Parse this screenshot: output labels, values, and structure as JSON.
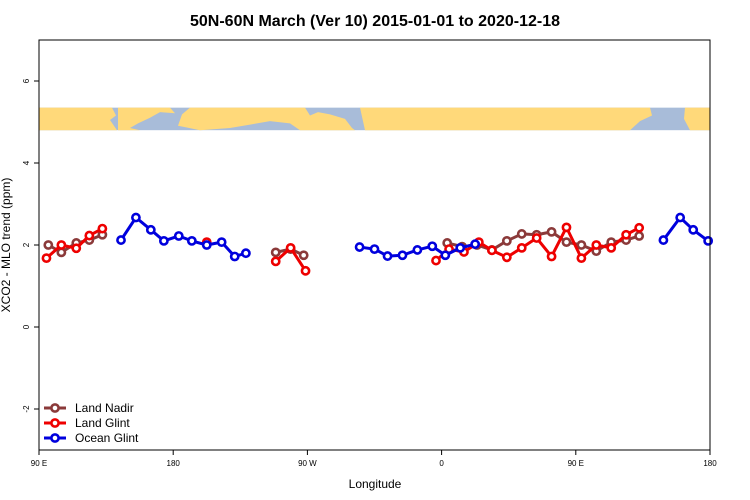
{
  "chart_data": {
    "type": "line",
    "title": "50N-60N March (Ver 10)   2015-01-01 to 2020-12-18",
    "xlabel": "Longitude",
    "ylabel": "XCO2 - MLO trend (ppm)",
    "xlim": [
      90,
      450
    ],
    "ylim": [
      -3,
      7
    ],
    "x_ticks": [
      {
        "value": 90,
        "label": "90 E"
      },
      {
        "value": 162,
        "label": "180"
      },
      {
        "value": 234,
        "label": "90 W"
      },
      {
        "value": 306,
        "label": "0"
      },
      {
        "value": 378,
        "label": "90 E"
      },
      {
        "value": 450,
        "label": "180"
      }
    ],
    "y_ticks": [
      {
        "value": -2,
        "label": "-2"
      },
      {
        "value": 0,
        "label": "0"
      },
      {
        "value": 2,
        "label": "2"
      },
      {
        "value": 4,
        "label": "4"
      },
      {
        "value": 6,
        "label": "6"
      }
    ],
    "map_band": {
      "y_range": [
        4.8,
        5.35
      ],
      "ocean_color": "#a8bcd9",
      "land_color": "#ffd97a"
    },
    "legend_position": "bottom-left",
    "series": [
      {
        "name": "Land Nadir",
        "color": "#8b3a3a",
        "segments": [
          [
            [
              95,
              2.0
            ],
            [
              102,
              1.82
            ],
            [
              110,
              2.05
            ],
            [
              117,
              2.12
            ],
            [
              124,
              2.25
            ]
          ],
          [
            [
              217,
              1.82
            ],
            [
              225,
              1.9
            ],
            [
              232,
              1.75
            ]
          ],
          [
            [
              309,
              2.05
            ],
            [
              317,
              1.96
            ],
            [
              325,
              2.0
            ],
            [
              333,
              1.88
            ],
            [
              341,
              2.1
            ],
            [
              349,
              2.27
            ],
            [
              357,
              2.25
            ],
            [
              365,
              2.32
            ],
            [
              373,
              2.07
            ],
            [
              381,
              2.0
            ],
            [
              389,
              1.85
            ],
            [
              397,
              2.07
            ],
            [
              405,
              2.12
            ],
            [
              412,
              2.22
            ]
          ]
        ]
      },
      {
        "name": "Land Glint",
        "color": "#ee0000",
        "segments": [
          [
            [
              94,
              1.68
            ],
            [
              102,
              2.0
            ],
            [
              110,
              1.92
            ],
            [
              117,
              2.23
            ],
            [
              124,
              2.4
            ]
          ],
          [
            [
              180,
              2.07
            ]
          ],
          [
            [
              217,
              1.6
            ],
            [
              225,
              1.93
            ],
            [
              233,
              1.37
            ]
          ],
          [
            [
              303,
              1.62
            ],
            [
              310,
              1.9
            ],
            [
              318,
              1.83
            ],
            [
              326,
              2.07
            ],
            [
              333,
              1.87
            ],
            [
              341,
              1.7
            ],
            [
              349,
              1.93
            ],
            [
              357,
              2.17
            ],
            [
              365,
              1.72
            ],
            [
              373,
              2.43
            ],
            [
              381,
              1.68
            ],
            [
              389,
              2.0
            ],
            [
              397,
              1.93
            ],
            [
              405,
              2.25
            ],
            [
              412,
              2.42
            ]
          ]
        ]
      },
      {
        "name": "Ocean Glint",
        "color": "#0000dd",
        "segments": [
          [
            [
              134,
              2.12
            ],
            [
              142,
              2.67
            ],
            [
              150,
              2.37
            ],
            [
              157,
              2.1
            ],
            [
              165,
              2.22
            ],
            [
              172,
              2.1
            ],
            [
              180,
              2.0
            ],
            [
              188,
              2.07
            ],
            [
              195,
              1.72
            ],
            [
              201,
              1.8
            ]
          ],
          [
            [
              262,
              1.95
            ],
            [
              270,
              1.9
            ],
            [
              277,
              1.73
            ],
            [
              285,
              1.75
            ],
            [
              293,
              1.88
            ],
            [
              301,
              1.97
            ],
            [
              308,
              1.75
            ],
            [
              316,
              1.93
            ],
            [
              324,
              2.02
            ]
          ],
          [
            [
              425,
              2.12
            ],
            [
              434,
              2.67
            ],
            [
              441,
              2.37
            ],
            [
              449,
              2.1
            ]
          ]
        ]
      }
    ]
  }
}
